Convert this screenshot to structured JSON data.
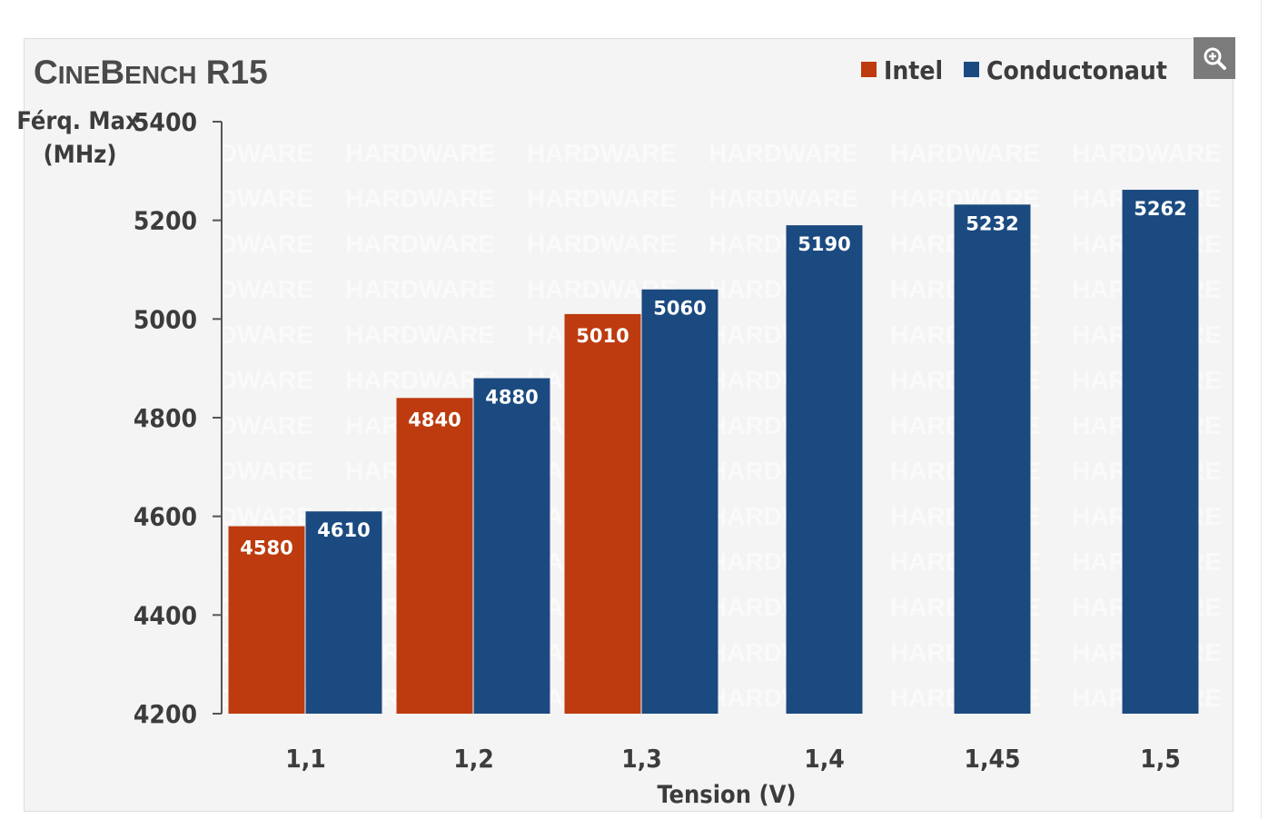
{
  "zoom_icon": "zoom-in-icon",
  "chart_data": {
    "type": "bar",
    "title_parts": [
      "C",
      "INE",
      "B",
      "ENCH",
      " R15"
    ],
    "ylabel": "Férq. Max",
    "ylabel_unit": "(MHz)",
    "xlabel": "Tension (V)",
    "categories": [
      "1,1",
      "1,2",
      "1,3",
      "1,4",
      "1,45",
      "1,5"
    ],
    "ylim": [
      4200,
      5400
    ],
    "yticks": [
      4200,
      4400,
      4600,
      4800,
      5000,
      5200,
      5400
    ],
    "legend_position": "top-right",
    "watermark": "HARDWARE",
    "series": [
      {
        "name": "Intel",
        "color": "#bd3b0e",
        "values": [
          4580,
          4840,
          5010,
          null,
          null,
          null
        ]
      },
      {
        "name": "Conductonaut",
        "color": "#1b4a80",
        "values": [
          4610,
          4880,
          5060,
          5190,
          5232,
          5262
        ]
      }
    ]
  }
}
